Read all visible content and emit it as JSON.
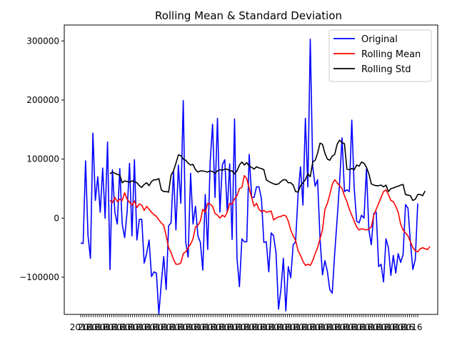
{
  "chart_data": {
    "type": "line",
    "title": "Rolling Mean & Standard Deviation",
    "xlabel": "",
    "ylabel": "",
    "ylim": [
      -163000,
      327000
    ],
    "y_ticks": [
      -100000,
      0,
      100000,
      200000,
      300000
    ],
    "y_tick_labels": [
      "−100000",
      "0",
      "100000",
      "200000",
      "300000"
    ],
    "x_tick_count": 164,
    "x_tick_labels_note": "dense, overlapping, illegible",
    "grid": false,
    "legend_position": "top-right",
    "series": [
      {
        "name": "Original",
        "color": "#0000ff",
        "values": [
          -42000,
          -43000,
          97000,
          -30000,
          -68000,
          144000,
          30000,
          70000,
          10000,
          85000,
          0,
          129000,
          -87000,
          82000,
          10000,
          -10000,
          84000,
          -10000,
          -33000,
          10000,
          93000,
          -30000,
          99000,
          -37000,
          -2000,
          -2000,
          -76000,
          -60000,
          -37000,
          -99000,
          -91000,
          -93000,
          -162000,
          -110000,
          -65000,
          -121000,
          -13000,
          -8000,
          80000,
          -20000,
          90000,
          25000,
          199000,
          -40000,
          -66000,
          76000,
          -10000,
          20000,
          -30000,
          -41000,
          -88000,
          40000,
          -53000,
          94000,
          159000,
          35000,
          169000,
          10000,
          90000,
          99000,
          10000,
          92000,
          -36000,
          168000,
          -68000,
          -116000,
          -35000,
          -40000,
          -40000,
          108000,
          35000,
          35000,
          53000,
          53000,
          33000,
          -41000,
          -40000,
          -91000,
          -25000,
          -30000,
          -60000,
          -154000,
          -120000,
          -68000,
          -157000,
          -82000,
          -101000,
          -45000,
          -40000,
          40000,
          87000,
          22000,
          169000,
          53000,
          303000,
          87000,
          54000,
          65000,
          -35000,
          -96000,
          -72000,
          -90000,
          -121000,
          -127000,
          -60000,
          -2000,
          60000,
          136000,
          45000,
          48000,
          45000,
          166000,
          50000,
          -5000,
          -8000,
          5000,
          0,
          83000,
          -20000,
          -45000,
          8000,
          10000,
          -82000,
          -78000,
          -108000,
          -35000,
          -50000,
          -97000,
          -63000,
          -93000,
          -60000,
          -75000,
          -62000,
          23000,
          17000,
          -40000,
          -87000,
          -70000,
          25000
        ],
        "line_start_index": 0
      },
      {
        "name": "Rolling Mean",
        "color": "#ff0000",
        "values": [
          30000,
          26000,
          35000,
          28000,
          32000,
          30000,
          43000,
          32000,
          27000,
          22000,
          29000,
          18000,
          24000,
          22000,
          13000,
          20000,
          15000,
          10000,
          6000,
          3000,
          -3000,
          -8000,
          -12000,
          -30000,
          -50000,
          -58000,
          -70000,
          -78000,
          -78000,
          -76000,
          -60000,
          -57000,
          -50000,
          -44000,
          -35000,
          -15000,
          -12000,
          -5000,
          15000,
          10000,
          25000,
          24000,
          20000,
          8000,
          5000,
          0,
          5000,
          2000,
          10000,
          25000,
          24000,
          33000,
          38000,
          50000,
          52000,
          72000,
          67000,
          50000,
          35000,
          20000,
          25000,
          15000,
          11000,
          13000,
          10000,
          11000,
          12000,
          -3000,
          0,
          2000,
          3000,
          5000,
          4000,
          -5000,
          -20000,
          -30000,
          -38000,
          -55000,
          -63000,
          -73000,
          -80000,
          -78000,
          -80000,
          -72000,
          -60000,
          -50000,
          -35000,
          -20000,
          15000,
          25000,
          40000,
          57000,
          65000,
          60000,
          55000,
          50000,
          38000,
          28000,
          15000,
          5000,
          -5000,
          -15000,
          -20000,
          -18000,
          -19000,
          -20000,
          -18000,
          -15000,
          5000,
          15000,
          25000,
          35000,
          45000,
          48000,
          40000,
          30000,
          28000,
          20000,
          10000,
          -10000,
          -20000,
          -25000,
          -30000,
          -40000,
          -50000,
          -55000,
          -57000,
          -52000,
          -50000,
          -52000,
          -53000,
          -48000
        ],
        "line_start_index": 12
      },
      {
        "name": "Rolling Std",
        "color": "#000000",
        "values": [
          75000,
          78000,
          76000,
          74000,
          73000,
          60000,
          63000,
          62000,
          61000,
          63000,
          62000,
          60000,
          55000,
          52000,
          57000,
          60000,
          55000,
          62000,
          65000,
          65000,
          67000,
          48000,
          45000,
          45000,
          44000,
          73000,
          80000,
          93000,
          107000,
          106000,
          100000,
          98000,
          93000,
          90000,
          91000,
          82000,
          78000,
          80000,
          80000,
          79000,
          78000,
          80000,
          79000,
          76000,
          80000,
          82000,
          81000,
          83000,
          83000,
          80000,
          80000,
          75000,
          80000,
          90000,
          95000,
          90000,
          94000,
          88000,
          86000,
          83000,
          87000,
          85000,
          84000,
          82000,
          65000,
          62000,
          60000,
          58000,
          57000,
          58000,
          62000,
          65000,
          65000,
          60000,
          60000,
          56000,
          45000,
          44000,
          55000,
          60000,
          65000,
          75000,
          70000,
          95000,
          98000,
          110000,
          127000,
          125000,
          110000,
          100000,
          98000,
          105000,
          108000,
          125000,
          132000,
          128000,
          126000,
          83000,
          82000,
          84000,
          82000,
          90000,
          88000,
          95000,
          93000,
          86000,
          75000,
          58000,
          56000,
          55000,
          55000,
          56000,
          53000,
          56000,
          45000,
          50000,
          51000,
          53000,
          54000,
          56000,
          57000,
          40000,
          39000,
          38000,
          30000,
          32000,
          40000,
          40000,
          38000,
          46000
        ],
        "line_start_index": 12
      }
    ]
  }
}
